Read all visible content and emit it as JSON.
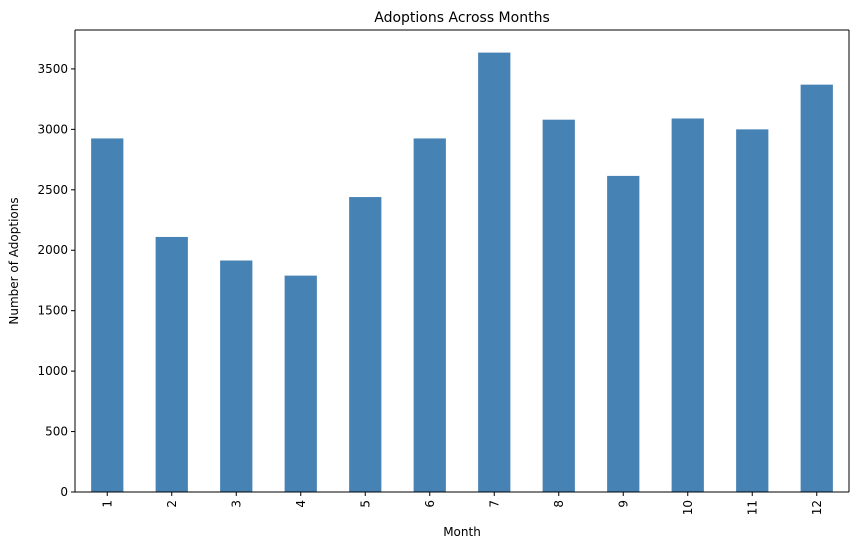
{
  "chart_data": {
    "type": "bar",
    "title": "Adoptions Across Months",
    "xlabel": "Month",
    "ylabel": "Number of Adoptions",
    "categories": [
      "1",
      "2",
      "3",
      "4",
      "5",
      "6",
      "7",
      "8",
      "9",
      "10",
      "11",
      "12"
    ],
    "values": [
      2925,
      2110,
      1915,
      1790,
      2440,
      2925,
      3635,
      3080,
      2615,
      3090,
      3000,
      3370
    ],
    "ylim": [
      0,
      3822
    ],
    "yticks": [
      0,
      500,
      1000,
      1500,
      2000,
      2500,
      3000,
      3500
    ],
    "x_tick_rotation": "vertical",
    "grid": false,
    "legend": "none",
    "bar_color": "#4682b4",
    "axis_color": "#000000"
  }
}
